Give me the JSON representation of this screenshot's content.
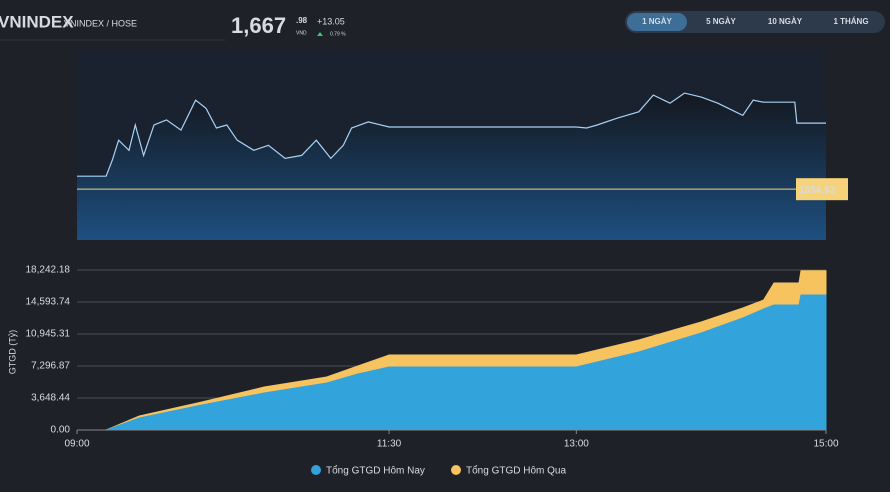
{
  "header": {
    "symbol": "VNINDEX",
    "exchange": "VNINDEX / HOSE",
    "price": "1,667",
    "price_decimals": ".98",
    "currency": "VND",
    "change": "+13.05",
    "change_pct": "0.79 %"
  },
  "tabs": [
    "1 NGÀY",
    "5 NGÀY",
    "10 NGÀY",
    "1 THÁNG"
  ],
  "active_tab": 0,
  "chart_data": [
    {
      "type": "line",
      "color": "#a8d1f5",
      "x": [
        "09:00",
        "09:14",
        "09:17",
        "09:20",
        "09:25",
        "09:28",
        "09:32",
        "09:37",
        "09:43",
        "09:50",
        "09:57",
        "10:02",
        "10:07",
        "10:12",
        "10:17",
        "10:25",
        "10:32",
        "10:40",
        "10:48",
        "10:55",
        "11:02",
        "11:08",
        "11:12",
        "11:20",
        "11:30",
        "13:00",
        "13:05",
        "13:10",
        "13:20",
        "13:30",
        "13:37",
        "13:45",
        "13:52",
        "14:00",
        "14:08",
        "14:15",
        "14:20",
        "14:25",
        "14:30",
        "14:45",
        "14:46",
        "15:00"
      ],
      "values": [
        1657.5,
        1657.5,
        1660.7,
        1664.6,
        1662.6,
        1667.6,
        1661.6,
        1667.6,
        1668.6,
        1666.6,
        1672.5,
        1670.9,
        1667.0,
        1667.6,
        1664.6,
        1662.6,
        1663.6,
        1661.0,
        1661.6,
        1664.6,
        1661.0,
        1663.6,
        1667.0,
        1668.2,
        1667.2,
        1667.2,
        1667.0,
        1667.6,
        1669.0,
        1670.2,
        1673.5,
        1671.9,
        1673.9,
        1673.1,
        1671.9,
        1670.5,
        1669.5,
        1672.5,
        1672.1,
        1672.1,
        1667.98,
        1667.98
      ],
      "xlim": [
        "09:00",
        "15:00"
      ],
      "ylim": [
        1644.9,
        1682.4
      ],
      "reference": 1654.93,
      "reference_color": "#f6d27a"
    },
    {
      "type": "area",
      "y_label": "GTGD (Tỷ)",
      "x": [
        "09:00",
        "09:14",
        "09:30",
        "10:00",
        "10:30",
        "11:00",
        "11:15",
        "11:30",
        "13:00",
        "13:30",
        "14:00",
        "14:20",
        "14:30",
        "14:35",
        "14:47",
        "14:48",
        "15:00"
      ],
      "series": [
        {
          "name": "Tổng GTGD Hôm Qua",
          "color": "#f7c35f",
          "values": [
            0,
            0,
            1600,
            3190,
            4900,
            6040,
            7300,
            8550,
            8550,
            10260,
            12310,
            13910,
            14820,
            16760,
            16760,
            18150,
            18150
          ]
        },
        {
          "name": "Tổng GTGD Hôm Nay",
          "color": "#33a3dc",
          "values": [
            0,
            0,
            1370,
            2850,
            4220,
            5360,
            6380,
            7180,
            7180,
            8890,
            11060,
            12770,
            13790,
            14250,
            14250,
            15390,
            15390
          ]
        }
      ],
      "legend_order": [
        1,
        0
      ],
      "xlim": [
        "09:00",
        "15:00"
      ],
      "xticks": [
        "09:00",
        "11:30",
        "13:00",
        "15:00"
      ],
      "ylim": [
        0,
        18242.18
      ],
      "yticks": [
        {
          "value": 0,
          "label": "0.00"
        },
        {
          "value": 3648.44,
          "label": "3,648.44"
        },
        {
          "value": 7296.87,
          "label": "7,296.87"
        },
        {
          "value": 10945.31,
          "label": "10,945.31"
        },
        {
          "value": 14593.74,
          "label": "14,593.74"
        },
        {
          "value": 18242.18,
          "label": "18,242.18"
        }
      ],
      "grid": true
    }
  ]
}
